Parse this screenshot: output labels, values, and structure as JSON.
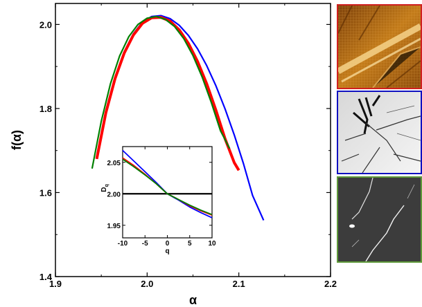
{
  "chart_data": [
    {
      "type": "line",
      "xlabel": "α",
      "ylabel": "f(α)",
      "xlim": [
        1.9,
        2.2
      ],
      "ylim": [
        1.4,
        2.05
      ],
      "xticks": [
        "1.9",
        "2.0",
        "2.1",
        "2.2"
      ],
      "yticks": [
        "1.4",
        "1.6",
        "1.8",
        "2.0"
      ],
      "grid": false,
      "series": [
        {
          "color": "#0000ff",
          "line_width": 2.2,
          "points": [
            [
              1.945,
              1.68
            ],
            [
              1.955,
              1.788
            ],
            [
              1.965,
              1.873
            ],
            [
              1.975,
              1.935
            ],
            [
              1.985,
              1.978
            ],
            [
              1.995,
              2.006
            ],
            [
              2.005,
              2.019
            ],
            [
              2.015,
              2.021
            ],
            [
              2.025,
              2.014
            ],
            [
              2.035,
              1.998
            ],
            [
              2.045,
              1.974
            ],
            [
              2.055,
              1.942
            ],
            [
              2.065,
              1.902
            ],
            [
              2.075,
              1.854
            ],
            [
              2.085,
              1.799
            ],
            [
              2.095,
              1.737
            ],
            [
              2.105,
              1.669
            ],
            [
              2.115,
              1.593
            ],
            [
              2.127,
              1.534
            ]
          ]
        },
        {
          "color": "#ff0000",
          "line_width": 4,
          "points": [
            [
              1.945,
              1.68
            ],
            [
              1.955,
              1.79
            ],
            [
              1.965,
              1.871
            ],
            [
              1.975,
              1.932
            ],
            [
              1.985,
              1.975
            ],
            [
              1.995,
              2.003
            ],
            [
              2.005,
              2.016
            ],
            [
              2.015,
              2.017
            ],
            [
              2.025,
              2.008
            ],
            [
              2.035,
              1.987
            ],
            [
              2.045,
              1.955
            ],
            [
              2.055,
              1.912
            ],
            [
              2.065,
              1.859
            ],
            [
              2.075,
              1.796
            ],
            [
              2.085,
              1.728
            ],
            [
              2.095,
              1.671
            ],
            [
              2.1,
              1.653
            ]
          ]
        },
        {
          "color": "#008000",
          "line_width": 2.2,
          "points": [
            [
              1.94,
              1.657
            ],
            [
              1.95,
              1.77
            ],
            [
              1.96,
              1.859
            ],
            [
              1.97,
              1.925
            ],
            [
              1.98,
              1.971
            ],
            [
              1.99,
              2.0
            ],
            [
              2.0,
              2.015
            ],
            [
              2.01,
              2.019
            ],
            [
              2.02,
              2.012
            ],
            [
              2.03,
              1.995
            ],
            [
              2.04,
              1.966
            ],
            [
              2.05,
              1.926
            ],
            [
              2.06,
              1.875
            ],
            [
              2.07,
              1.814
            ],
            [
              2.08,
              1.747
            ],
            [
              2.09,
              1.705
            ]
          ]
        }
      ]
    },
    {
      "type": "line",
      "xlabel": "q",
      "ylabel": "D_q",
      "xlim": [
        -10,
        10
      ],
      "ylim": [
        1.93,
        2.075
      ],
      "xticks": [
        "-10",
        "-5",
        "0",
        "5",
        "10"
      ],
      "yticks": [
        "1.95",
        "2.00",
        "2.05"
      ],
      "reference_line": {
        "y": 2.0,
        "color": "#000000"
      },
      "series": [
        {
          "color": "#0000ff",
          "x": [
            -10,
            -7.5,
            -5,
            -2.5,
            0,
            2.5,
            5,
            7.5,
            10
          ],
          "values": [
            2.069,
            2.052,
            2.035,
            2.018,
            2.0,
            1.99,
            1.979,
            1.97,
            1.962
          ]
        },
        {
          "color": "#ff0000",
          "x": [
            -10,
            -7.5,
            -5,
            -2.5,
            0,
            2.5,
            5,
            7.5,
            10
          ],
          "values": [
            2.057,
            2.045,
            2.031,
            2.016,
            2.0,
            1.991,
            1.981,
            1.973,
            1.966
          ]
        },
        {
          "color": "#008000",
          "x": [
            -10,
            -7.5,
            -5,
            -2.5,
            0,
            2.5,
            5,
            7.5,
            10
          ],
          "values": [
            2.055,
            2.043,
            2.03,
            2.016,
            2.0,
            1.991,
            1.982,
            1.974,
            1.967
          ]
        }
      ]
    }
  ],
  "thumbnails": [
    {
      "border_color": "#d02020",
      "name": "orange-texture-image"
    },
    {
      "border_color": "#1010c0",
      "name": "cracked-surface-image"
    },
    {
      "border_color": "#5f9a3a",
      "name": "dark-fracture-image"
    }
  ]
}
